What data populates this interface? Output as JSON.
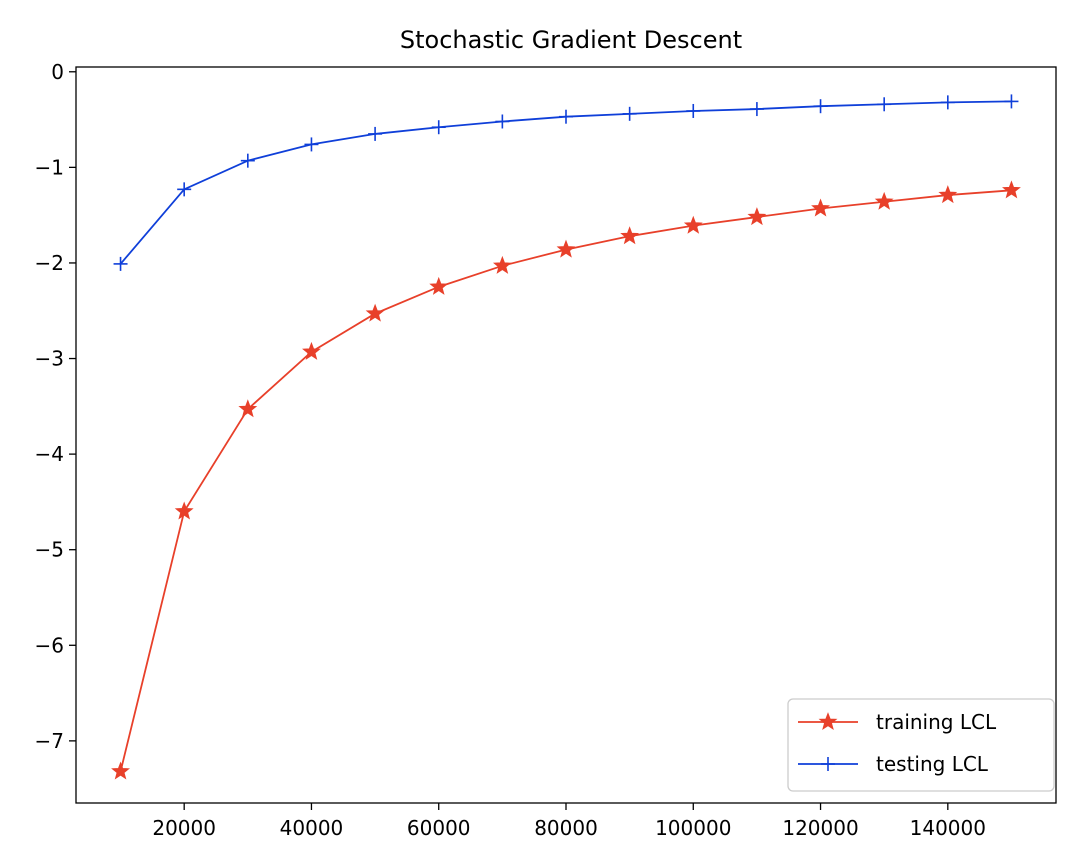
{
  "chart_data": {
    "type": "line",
    "title": "Stochastic Gradient Descent",
    "xlabel": "",
    "ylabel": "",
    "x": [
      10000,
      20000,
      30000,
      40000,
      50000,
      60000,
      70000,
      80000,
      90000,
      100000,
      110000,
      120000,
      130000,
      140000,
      150000
    ],
    "xlim": [
      3000,
      157000
    ],
    "ylim": [
      -7.65,
      0.05
    ],
    "xticks": [
      20000,
      40000,
      60000,
      80000,
      100000,
      120000,
      140000
    ],
    "xtick_labels": [
      "20000",
      "40000",
      "60000",
      "80000",
      "100000",
      "120000",
      "140000"
    ],
    "yticks": [
      0,
      -1,
      -2,
      -3,
      -4,
      -5,
      -6,
      -7
    ],
    "ytick_labels": [
      "0",
      "−1",
      "−2",
      "−3",
      "−4",
      "−5",
      "−6",
      "−7"
    ],
    "grid": false,
    "legend_position": "bottom-right",
    "series": [
      {
        "name": "training LCL",
        "color": "#e8402a",
        "marker": "star",
        "values": [
          -7.32,
          -4.6,
          -3.53,
          -2.93,
          -2.53,
          -2.25,
          -2.03,
          -1.86,
          -1.72,
          -1.61,
          -1.52,
          -1.43,
          -1.36,
          -1.29,
          -1.24
        ]
      },
      {
        "name": "testing LCL",
        "color": "#0f3fd9",
        "marker": "plus",
        "values": [
          -2.01,
          -1.23,
          -0.93,
          -0.76,
          -0.65,
          -0.58,
          -0.52,
          -0.47,
          -0.44,
          -0.41,
          -0.39,
          -0.36,
          -0.34,
          -0.32,
          -0.31
        ]
      }
    ]
  }
}
